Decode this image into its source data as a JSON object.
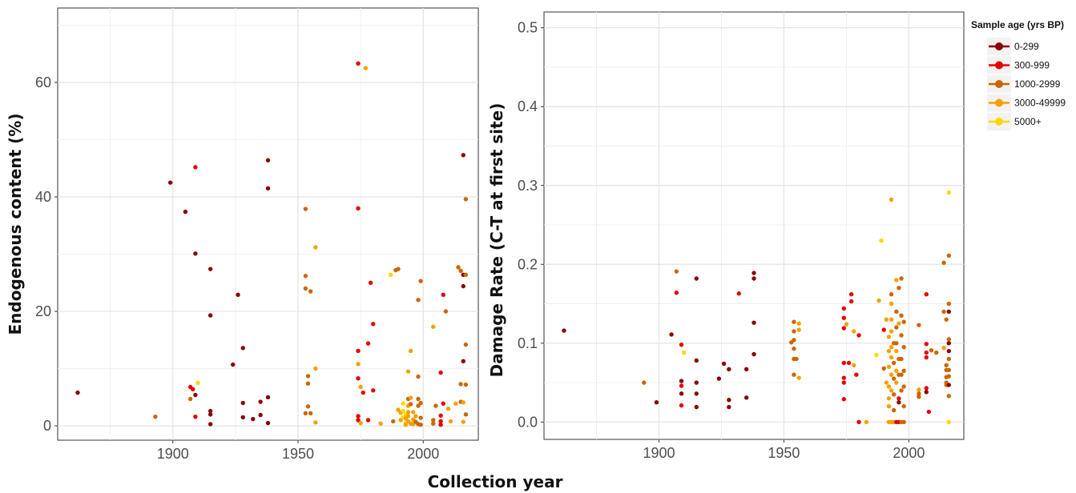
{
  "shared_xlabel": "Collection year",
  "legend": {
    "title": "Sample age (yrs BP)",
    "items": [
      {
        "label": "0-299",
        "color": "#8b0000"
      },
      {
        "label": "300-999",
        "color": "#e60000"
      },
      {
        "label": "1000-2999",
        "color": "#cc6600"
      },
      {
        "label": "3000-49999",
        "color": "#f5a000"
      },
      {
        "label": "5000+",
        "color": "#ffd700"
      }
    ]
  },
  "chart_data": [
    {
      "type": "scatter",
      "ylabel": "Endogenous content (%)",
      "xlim": [
        1854,
        2022
      ],
      "ylim": [
        -2.5,
        73
      ],
      "xticks": [
        1900,
        1950,
        2000
      ],
      "yticks": [
        0,
        20,
        40,
        60
      ],
      "grid": true,
      "points": [
        [
          1862,
          5.8,
          0
        ],
        [
          1893,
          1.6,
          2
        ],
        [
          1899,
          42.5,
          0
        ],
        [
          1905,
          37.4,
          0
        ],
        [
          1907,
          4.7,
          2
        ],
        [
          1907,
          6.8,
          1
        ],
        [
          1908,
          6.4,
          1
        ],
        [
          1909,
          45.2,
          1
        ],
        [
          1909,
          30.1,
          0
        ],
        [
          1909,
          1.6,
          1
        ],
        [
          1909,
          5.4,
          0
        ],
        [
          1910,
          7.5,
          4
        ],
        [
          1915,
          27.4,
          0
        ],
        [
          1915,
          19.3,
          0
        ],
        [
          1915,
          2.6,
          0
        ],
        [
          1915,
          2.0,
          0
        ],
        [
          1915,
          0.3,
          0
        ],
        [
          1924,
          10.7,
          0
        ],
        [
          1926,
          22.9,
          0
        ],
        [
          1928,
          13.6,
          0
        ],
        [
          1928,
          4.0,
          0
        ],
        [
          1928,
          1.5,
          0
        ],
        [
          1932,
          1.2,
          0
        ],
        [
          1935,
          4.2,
          0
        ],
        [
          1935,
          1.9,
          0
        ],
        [
          1938,
          46.4,
          0
        ],
        [
          1938,
          41.5,
          0
        ],
        [
          1938,
          5.0,
          0
        ],
        [
          1938,
          0.5,
          0
        ],
        [
          1953,
          37.9,
          2
        ],
        [
          1953,
          26.2,
          2
        ],
        [
          1953,
          24.0,
          2
        ],
        [
          1953,
          2.2,
          2
        ],
        [
          1954,
          8.7,
          2
        ],
        [
          1954,
          7.4,
          2
        ],
        [
          1954,
          3.4,
          2
        ],
        [
          1955,
          23.5,
          2
        ],
        [
          1955,
          2.2,
          2
        ],
        [
          1957,
          31.2,
          3
        ],
        [
          1957,
          10.0,
          3
        ],
        [
          1957,
          0.6,
          3
        ],
        [
          1974,
          63.3,
          1
        ],
        [
          1974,
          38.0,
          1
        ],
        [
          1974,
          13.1,
          1
        ],
        [
          1974,
          8.3,
          1
        ],
        [
          1974,
          1.7,
          1
        ],
        [
          1974,
          1.0,
          1
        ],
        [
          1974,
          10.8,
          3
        ],
        [
          1975,
          6.8,
          3
        ],
        [
          1975,
          0.5,
          3
        ],
        [
          1976,
          5.8,
          1
        ],
        [
          1977,
          62.5,
          3
        ],
        [
          1978,
          14.4,
          1
        ],
        [
          1978,
          1.0,
          1
        ],
        [
          1979,
          25.0,
          1
        ],
        [
          1980,
          17.8,
          1
        ],
        [
          1980,
          6.2,
          1
        ],
        [
          1983,
          0.4,
          3
        ],
        [
          1987,
          26.4,
          4
        ],
        [
          1988,
          0.8,
          2
        ],
        [
          1989,
          27.2,
          2
        ],
        [
          1990,
          27.4,
          2
        ],
        [
          1990,
          2.8,
          3
        ],
        [
          1991,
          2.3,
          3
        ],
        [
          1991,
          1.0,
          3
        ],
        [
          1992,
          3.9,
          4
        ],
        [
          1992,
          2.6,
          4
        ],
        [
          1992,
          1.5,
          4
        ],
        [
          1993,
          0.5,
          4
        ],
        [
          1993,
          2.0,
          4
        ],
        [
          1993,
          1.3,
          3
        ],
        [
          1993,
          0.2,
          3
        ],
        [
          1994,
          4.7,
          2
        ],
        [
          1994,
          3.5,
          3
        ],
        [
          1994,
          2.4,
          3
        ],
        [
          1994,
          1.7,
          3
        ],
        [
          1994,
          0.8,
          3
        ],
        [
          1994,
          9.5,
          3
        ],
        [
          1995,
          13.1,
          3
        ],
        [
          1995,
          4.9,
          3
        ],
        [
          1995,
          3.8,
          2
        ],
        [
          1995,
          0.4,
          3
        ],
        [
          1996,
          2.4,
          3
        ],
        [
          1996,
          1.1,
          3
        ],
        [
          1996,
          0.3,
          3
        ],
        [
          1997,
          0.7,
          2
        ],
        [
          1997,
          1.7,
          3
        ],
        [
          1998,
          22.0,
          2
        ],
        [
          1998,
          8.6,
          2
        ],
        [
          1998,
          4.7,
          2
        ],
        [
          1998,
          3.5,
          2
        ],
        [
          1998,
          0.3,
          2
        ],
        [
          1999,
          25.3,
          2
        ],
        [
          1999,
          4.0,
          2
        ],
        [
          1999,
          1.4,
          2
        ],
        [
          1999,
          0.2,
          2
        ],
        [
          2004,
          17.3,
          3
        ],
        [
          2004,
          1.0,
          2
        ],
        [
          2004,
          0.4,
          2
        ],
        [
          2005,
          3.5,
          2
        ],
        [
          2007,
          9.3,
          1
        ],
        [
          2007,
          1.8,
          1
        ],
        [
          2007,
          0.8,
          1
        ],
        [
          2007,
          0.2,
          1
        ],
        [
          2008,
          22.9,
          1
        ],
        [
          2008,
          3.9,
          1
        ],
        [
          2009,
          20.0,
          2
        ],
        [
          2010,
          3.0,
          3
        ],
        [
          2011,
          0.8,
          3
        ],
        [
          2013,
          3.9,
          3
        ],
        [
          2014,
          27.7,
          2
        ],
        [
          2015,
          7.3,
          2
        ],
        [
          2015,
          4.2,
          2
        ],
        [
          2015,
          27.1,
          2
        ],
        [
          2016,
          47.3,
          0
        ],
        [
          2016,
          26.4,
          0
        ],
        [
          2016,
          24.4,
          0
        ],
        [
          2016,
          11.3,
          0
        ],
        [
          2016,
          4.1,
          3
        ],
        [
          2016,
          0.7,
          3
        ],
        [
          2017,
          39.6,
          2
        ],
        [
          2017,
          26.4,
          2
        ],
        [
          2017,
          14.2,
          2
        ],
        [
          2017,
          7.2,
          2
        ],
        [
          2017,
          2.0,
          2
        ]
      ]
    },
    {
      "type": "scatter",
      "ylabel": "Damage Rate (C-T at first site)",
      "xlim": [
        1854,
        2022
      ],
      "ylim": [
        -0.022,
        0.52
      ],
      "xticks": [
        1900,
        1950,
        2000
      ],
      "yticks": [
        0.0,
        0.1,
        0.2,
        0.3,
        0.4,
        0.5
      ],
      "grid": true,
      "points": [
        [
          1862,
          0.116,
          0
        ],
        [
          1894,
          0.05,
          2
        ],
        [
          1899,
          0.025,
          0
        ],
        [
          1905,
          0.111,
          0
        ],
        [
          1907,
          0.191,
          2
        ],
        [
          1907,
          0.164,
          1
        ],
        [
          1909,
          0.098,
          1
        ],
        [
          1909,
          0.052,
          0
        ],
        [
          1909,
          0.046,
          1
        ],
        [
          1909,
          0.036,
          0
        ],
        [
          1909,
          0.021,
          1
        ],
        [
          1910,
          0.088,
          4
        ],
        [
          1915,
          0.182,
          0
        ],
        [
          1915,
          0.078,
          0
        ],
        [
          1915,
          0.05,
          0
        ],
        [
          1915,
          0.036,
          0
        ],
        [
          1915,
          0.019,
          0
        ],
        [
          1924,
          0.055,
          0
        ],
        [
          1926,
          0.074,
          0
        ],
        [
          1928,
          0.067,
          0
        ],
        [
          1928,
          0.028,
          0
        ],
        [
          1928,
          0.019,
          0
        ],
        [
          1932,
          0.163,
          1
        ],
        [
          1935,
          0.067,
          0
        ],
        [
          1935,
          0.031,
          0
        ],
        [
          1938,
          0.189,
          0
        ],
        [
          1938,
          0.182,
          0
        ],
        [
          1938,
          0.126,
          0
        ],
        [
          1938,
          0.086,
          0
        ],
        [
          1953,
          0.101,
          2
        ],
        [
          1954,
          0.127,
          2
        ],
        [
          1954,
          0.115,
          2
        ],
        [
          1954,
          0.104,
          2
        ],
        [
          1954,
          0.093,
          2
        ],
        [
          1954,
          0.08,
          2
        ],
        [
          1954,
          0.06,
          2
        ],
        [
          1955,
          0.08,
          2
        ],
        [
          1956,
          0.125,
          3
        ],
        [
          1956,
          0.117,
          3
        ],
        [
          1956,
          0.056,
          3
        ],
        [
          1974,
          0.144,
          1
        ],
        [
          1974,
          0.132,
          1
        ],
        [
          1974,
          0.119,
          1
        ],
        [
          1974,
          0.075,
          1
        ],
        [
          1974,
          0.056,
          1
        ],
        [
          1974,
          0.05,
          1
        ],
        [
          1974,
          0.029,
          1
        ],
        [
          1975,
          0.124,
          3
        ],
        [
          1976,
          0.075,
          1
        ],
        [
          1977,
          0.162,
          1
        ],
        [
          1977,
          0.153,
          1
        ],
        [
          1978,
          0.115,
          3
        ],
        [
          1978,
          0.072,
          3
        ],
        [
          1979,
          0.06,
          1
        ],
        [
          1980,
          0.0,
          1
        ],
        [
          1980,
          0.11,
          1
        ],
        [
          1983,
          0.0,
          3
        ],
        [
          1987,
          0.085,
          4
        ],
        [
          1988,
          0.154,
          3
        ],
        [
          1989,
          0.23,
          4
        ],
        [
          1990,
          0.117,
          1
        ],
        [
          1990,
          0.068,
          2
        ],
        [
          1991,
          0.13,
          3
        ],
        [
          1991,
          0.05,
          3
        ],
        [
          1992,
          0.108,
          3
        ],
        [
          1992,
          0.09,
          3
        ],
        [
          1992,
          0.07,
          3
        ],
        [
          1992,
          0.045,
          3
        ],
        [
          1992,
          0.03,
          3
        ],
        [
          1992,
          0.02,
          3
        ],
        [
          1992,
          0.0,
          3
        ],
        [
          1993,
          0.15,
          3
        ],
        [
          1993,
          0.13,
          3
        ],
        [
          1993,
          0.115,
          3
        ],
        [
          1993,
          0.095,
          3
        ],
        [
          1993,
          0.082,
          3
        ],
        [
          1993,
          0.06,
          3
        ],
        [
          1993,
          0.04,
          3
        ],
        [
          1993,
          0.0,
          3
        ],
        [
          1993,
          0.282,
          3
        ],
        [
          1993,
          0.162,
          2
        ],
        [
          1994,
          0.1,
          2
        ],
        [
          1994,
          0.075,
          2
        ],
        [
          1994,
          0.055,
          2
        ],
        [
          1994,
          0.035,
          2
        ],
        [
          1994,
          0.015,
          2
        ],
        [
          1994,
          0.0,
          3
        ],
        [
          1995,
          0.18,
          3
        ],
        [
          1995,
          0.14,
          2
        ],
        [
          1995,
          0.12,
          2
        ],
        [
          1995,
          0.1,
          2
        ],
        [
          1995,
          0.09,
          3
        ],
        [
          1995,
          0.065,
          3
        ],
        [
          1995,
          0.05,
          3
        ],
        [
          1995,
          0.0,
          1
        ],
        [
          1996,
          0.17,
          2
        ],
        [
          1996,
          0.125,
          3
        ],
        [
          1996,
          0.08,
          2
        ],
        [
          1996,
          0.06,
          2
        ],
        [
          1996,
          0.03,
          1
        ],
        [
          1996,
          0.025,
          0
        ],
        [
          1996,
          0.0,
          1
        ],
        [
          1997,
          0.182,
          2
        ],
        [
          1997,
          0.135,
          2
        ],
        [
          1997,
          0.11,
          2
        ],
        [
          1997,
          0.08,
          2
        ],
        [
          1997,
          0.06,
          2
        ],
        [
          1997,
          0.04,
          2
        ],
        [
          1997,
          0.0,
          2
        ],
        [
          1998,
          0.127,
          2
        ],
        [
          1998,
          0.095,
          2
        ],
        [
          1998,
          0.065,
          2
        ],
        [
          1998,
          0.045,
          2
        ],
        [
          1998,
          0.02,
          2
        ],
        [
          1998,
          0.0,
          2
        ],
        [
          2004,
          0.123,
          2
        ],
        [
          2004,
          0.041,
          3
        ],
        [
          2004,
          0.036,
          2
        ],
        [
          2004,
          0.032,
          2
        ],
        [
          2007,
          0.162,
          1
        ],
        [
          2007,
          0.099,
          1
        ],
        [
          2007,
          0.088,
          1
        ],
        [
          2007,
          0.082,
          1
        ],
        [
          2007,
          0.043,
          1
        ],
        [
          2007,
          0.038,
          0
        ],
        [
          2008,
          0.013,
          1
        ],
        [
          2009,
          0.091,
          2
        ],
        [
          2011,
          0.088,
          2
        ],
        [
          2014,
          0.094,
          3
        ],
        [
          2014,
          0.202,
          2
        ],
        [
          2014,
          0.14,
          2
        ],
        [
          2015,
          0.13,
          2
        ],
        [
          2015,
          0.072,
          2
        ],
        [
          2015,
          0.066,
          2
        ],
        [
          2015,
          0.057,
          2
        ],
        [
          2015,
          0.05,
          2
        ],
        [
          2015,
          0.047,
          2
        ],
        [
          2016,
          0.14,
          0
        ],
        [
          2016,
          0.1,
          0
        ],
        [
          2016,
          0.09,
          0
        ],
        [
          2016,
          0.047,
          0
        ],
        [
          2016,
          0.211,
          2
        ],
        [
          2016,
          0.15,
          2
        ],
        [
          2016,
          0.105,
          2
        ],
        [
          2016,
          0.08,
          2
        ],
        [
          2016,
          0.066,
          2
        ],
        [
          2016,
          0.058,
          2
        ],
        [
          2016,
          0.033,
          2
        ],
        [
          2016,
          0.291,
          4
        ],
        [
          2016,
          0.0,
          4
        ]
      ]
    }
  ]
}
